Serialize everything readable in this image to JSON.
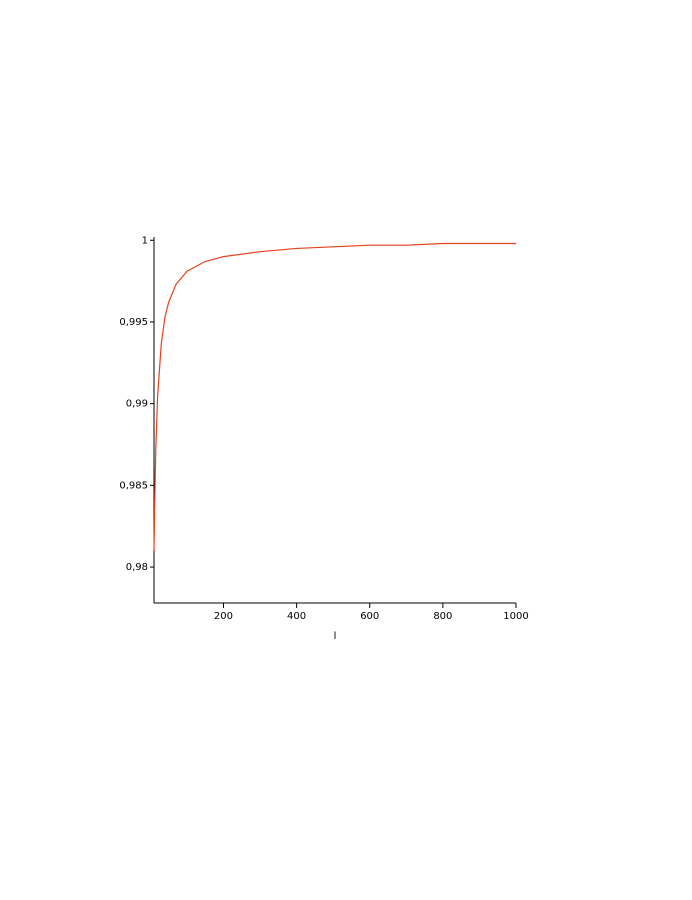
{
  "chart_data": {
    "type": "line",
    "x_label": "l",
    "x": [
      10,
      12,
      15,
      20,
      30,
      40,
      50,
      70,
      100,
      150,
      200,
      300,
      400,
      500,
      600,
      700,
      800,
      900,
      1000
    ],
    "series": [
      {
        "color": "#e8401c",
        "values": [
          0.981,
          0.984,
          0.9873,
          0.9905,
          0.9937,
          0.9953,
          0.9962,
          0.9973,
          0.9981,
          0.9987,
          0.999,
          0.9993,
          0.9995,
          0.9996,
          0.9997,
          0.9997,
          0.9998,
          0.9998,
          0.9998
        ]
      }
    ],
    "xlim": [
      10,
      1000
    ],
    "ylim": [
      0.9778,
      1.0002
    ],
    "xticks": [
      200,
      400,
      600,
      800,
      1000
    ],
    "yticks": [
      {
        "value": 0.98,
        "label": "0,98"
      },
      {
        "value": 0.985,
        "label": "0,985"
      },
      {
        "value": 0.99,
        "label": "0,99"
      },
      {
        "value": 0.995,
        "label": "0,995"
      },
      1
    ],
    "grid": false
  }
}
